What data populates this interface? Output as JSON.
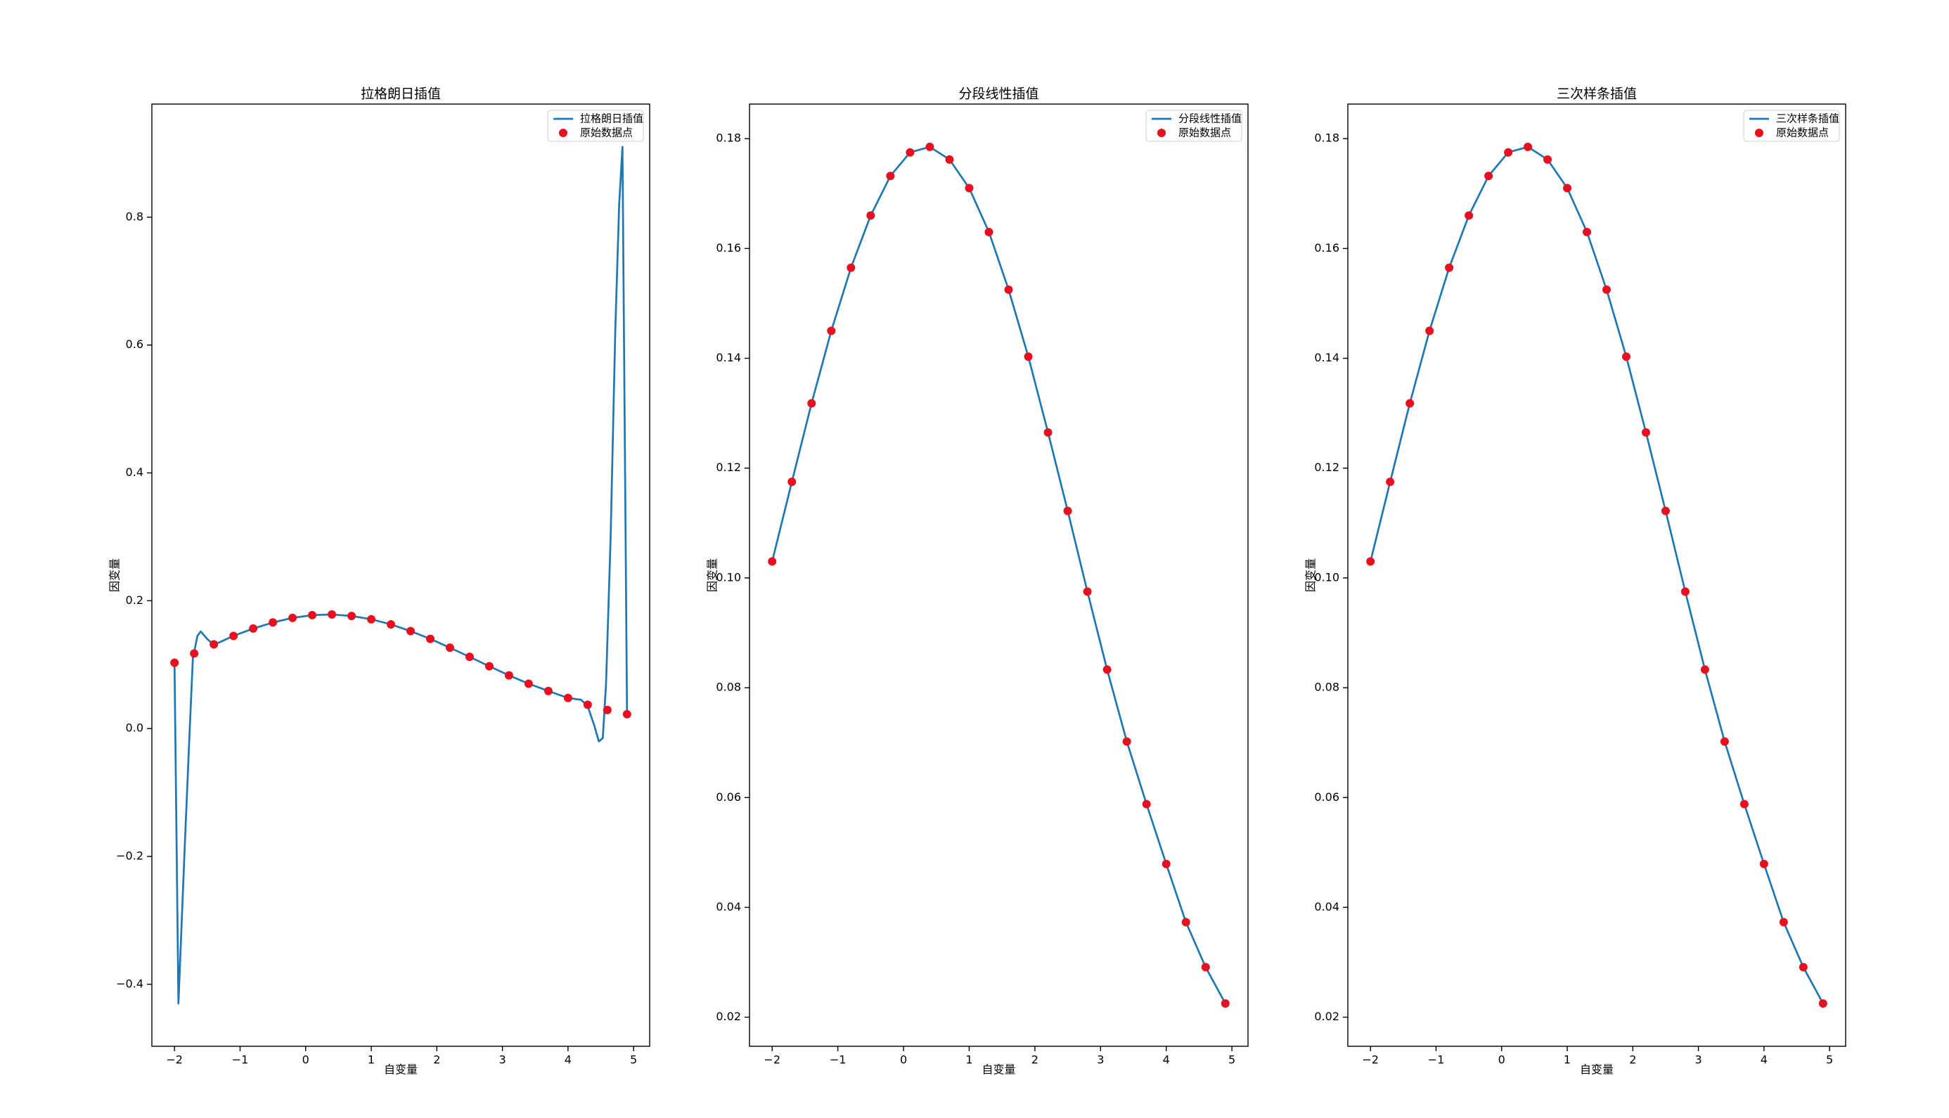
{
  "chart_data": [
    {
      "type": "line",
      "title": "拉格朗日插值",
      "xlabel": "自变量",
      "ylabel": "因变量",
      "xlim": [
        -2.345,
        5.245
      ],
      "ylim": [
        -0.497,
        0.977
      ],
      "xticks": [
        {
          "value": -2,
          "label": "−2"
        },
        {
          "value": -1,
          "label": "−1"
        },
        {
          "value": 0,
          "label": "0"
        },
        1,
        2,
        3,
        4,
        5
      ],
      "yticks": [
        {
          "value": -0.4,
          "label": "−0.4"
        },
        {
          "value": -0.2,
          "label": "−0.2"
        },
        {
          "value": 0,
          "label": "0.0"
        },
        0.2,
        0.4,
        0.6,
        0.8
      ],
      "legend": "upper right",
      "series": [
        {
          "name": "拉格朗日插值",
          "color": "#1f77b4",
          "style": "line",
          "x": [
            -2,
            -1.94,
            -1.85,
            -1.78,
            -1.72,
            -1.65,
            -1.6,
            -1.5,
            -1.4,
            -1.1,
            -0.8,
            -0.5,
            -0.2,
            0.1,
            0.4,
            0.7,
            1.0,
            1.3,
            1.6,
            1.9,
            2.2,
            2.5,
            2.8,
            3.1,
            3.4,
            3.7,
            4.0,
            4.2,
            4.3,
            4.4,
            4.47,
            4.53,
            4.58,
            4.65,
            4.72,
            4.78,
            4.83,
            4.9
          ],
          "values": [
            0.103,
            -0.43,
            -0.2,
            -0.03,
            0.11,
            0.145,
            0.152,
            0.14,
            0.131,
            0.145,
            0.1565,
            0.166,
            0.1732,
            0.1775,
            0.1785,
            0.1762,
            0.171,
            0.163,
            0.1525,
            0.1403,
            0.1265,
            0.1122,
            0.0975,
            0.0833,
            0.0702,
            0.0588,
            0.0479,
            0.045,
            0.035,
            0.005,
            -0.02,
            -0.015,
            0.07,
            0.3,
            0.62,
            0.82,
            0.91,
            0.022
          ]
        },
        {
          "name": "原始数据点",
          "color": "#e8101f",
          "style": "points",
          "x": [
            -2,
            -1.7,
            -1.4,
            -1.1,
            -0.8,
            -0.5,
            -0.2,
            0.1,
            0.4,
            0.7,
            1.0,
            1.3,
            1.6,
            1.9,
            2.2,
            2.5,
            2.8,
            3.1,
            3.4,
            3.7,
            4.0,
            4.3,
            4.6,
            4.9
          ],
          "values": [
            0.103,
            0.1175,
            0.1318,
            0.145,
            0.1565,
            0.166,
            0.1732,
            0.1775,
            0.1785,
            0.1762,
            0.171,
            0.163,
            0.1525,
            0.1403,
            0.1265,
            0.1122,
            0.0975,
            0.0833,
            0.0702,
            0.0588,
            0.0479,
            0.0373,
            0.0291,
            0.0225
          ]
        }
      ]
    },
    {
      "type": "line",
      "title": "分段线性插值",
      "xlabel": "自变量",
      "ylabel": "因变量",
      "xlim": [
        -2.345,
        5.245
      ],
      "ylim": [
        0.0147,
        0.1863
      ],
      "xticks": [
        {
          "value": -2,
          "label": "−2"
        },
        {
          "value": -1,
          "label": "−1"
        },
        {
          "value": 0,
          "label": "0"
        },
        1,
        2,
        3,
        4,
        5
      ],
      "yticks": [
        0.02,
        0.04,
        0.06,
        0.08,
        {
          "value": 0.1,
          "label": "0.10"
        },
        0.12,
        0.14,
        0.16,
        0.18
      ],
      "legend": "upper right",
      "series": [
        {
          "name": "分段线性插值",
          "color": "#1f77b4",
          "style": "line",
          "x": [
            -2,
            -1.7,
            -1.4,
            -1.1,
            -0.8,
            -0.5,
            -0.2,
            0.1,
            0.4,
            0.7,
            1.0,
            1.3,
            1.6,
            1.9,
            2.2,
            2.5,
            2.8,
            3.1,
            3.4,
            3.7,
            4.0,
            4.3,
            4.6,
            4.9
          ],
          "values": [
            0.103,
            0.1175,
            0.1318,
            0.145,
            0.1565,
            0.166,
            0.1732,
            0.1775,
            0.1785,
            0.1762,
            0.171,
            0.163,
            0.1525,
            0.1403,
            0.1265,
            0.1122,
            0.0975,
            0.0833,
            0.0702,
            0.0588,
            0.0479,
            0.0373,
            0.0291,
            0.0225
          ]
        },
        {
          "name": "原始数据点",
          "color": "#e8101f",
          "style": "points",
          "x": [
            -2,
            -1.7,
            -1.4,
            -1.1,
            -0.8,
            -0.5,
            -0.2,
            0.1,
            0.4,
            0.7,
            1.0,
            1.3,
            1.6,
            1.9,
            2.2,
            2.5,
            2.8,
            3.1,
            3.4,
            3.7,
            4.0,
            4.3,
            4.6,
            4.9
          ],
          "values": [
            0.103,
            0.1175,
            0.1318,
            0.145,
            0.1565,
            0.166,
            0.1732,
            0.1775,
            0.1785,
            0.1762,
            0.171,
            0.163,
            0.1525,
            0.1403,
            0.1265,
            0.1122,
            0.0975,
            0.0833,
            0.0702,
            0.0588,
            0.0479,
            0.0373,
            0.0291,
            0.0225
          ]
        }
      ]
    },
    {
      "type": "line",
      "title": "三次样条插值",
      "xlabel": "自变量",
      "ylabel": "因变量",
      "xlim": [
        -2.345,
        5.245
      ],
      "ylim": [
        0.0147,
        0.1863
      ],
      "xticks": [
        {
          "value": -2,
          "label": "−2"
        },
        {
          "value": -1,
          "label": "−1"
        },
        {
          "value": 0,
          "label": "0"
        },
        1,
        2,
        3,
        4,
        5
      ],
      "yticks": [
        0.02,
        0.04,
        0.06,
        0.08,
        {
          "value": 0.1,
          "label": "0.10"
        },
        0.12,
        0.14,
        0.16,
        0.18
      ],
      "legend": "upper right",
      "series": [
        {
          "name": "三次样条插值",
          "color": "#1f77b4",
          "style": "line",
          "x": [
            -2,
            -1.7,
            -1.4,
            -1.1,
            -0.8,
            -0.5,
            -0.2,
            0.1,
            0.4,
            0.7,
            1.0,
            1.3,
            1.6,
            1.9,
            2.2,
            2.5,
            2.8,
            3.1,
            3.4,
            3.7,
            4.0,
            4.3,
            4.6,
            4.9
          ],
          "values": [
            0.103,
            0.1175,
            0.1318,
            0.145,
            0.1565,
            0.166,
            0.1732,
            0.1775,
            0.1785,
            0.1762,
            0.171,
            0.163,
            0.1525,
            0.1403,
            0.1265,
            0.1122,
            0.0975,
            0.0833,
            0.0702,
            0.0588,
            0.0479,
            0.0373,
            0.0291,
            0.0225
          ]
        },
        {
          "name": "原始数据点",
          "color": "#e8101f",
          "style": "points",
          "x": [
            -2,
            -1.7,
            -1.4,
            -1.1,
            -0.8,
            -0.5,
            -0.2,
            0.1,
            0.4,
            0.7,
            1.0,
            1.3,
            1.6,
            1.9,
            2.2,
            2.5,
            2.8,
            3.1,
            3.4,
            3.7,
            4.0,
            4.3,
            4.6,
            4.9
          ],
          "values": [
            0.103,
            0.1175,
            0.1318,
            0.145,
            0.1565,
            0.166,
            0.1732,
            0.1775,
            0.1785,
            0.1762,
            0.171,
            0.163,
            0.1525,
            0.1403,
            0.1265,
            0.1122,
            0.0975,
            0.0833,
            0.0702,
            0.0588,
            0.0479,
            0.0373,
            0.0291,
            0.0225
          ]
        }
      ]
    }
  ]
}
